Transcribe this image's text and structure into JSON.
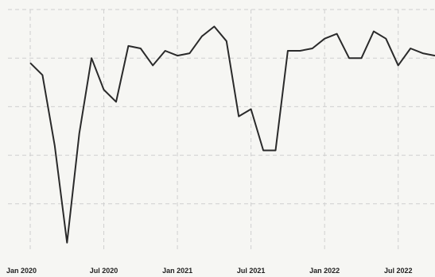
{
  "chart_data": {
    "type": "line",
    "title": "",
    "xlabel": "",
    "ylabel": "",
    "grid": true,
    "legend": "none",
    "line_color": "#2a2a2a",
    "x_ticks": [
      {
        "label": "Jan 2020",
        "date": "2020-01"
      },
      {
        "label": "Jul 2020",
        "date": "2020-07"
      },
      {
        "label": "Jan 2021",
        "date": "2021-01"
      },
      {
        "label": "Jul 2021",
        "date": "2021-07"
      },
      {
        "label": "Jan 2022",
        "date": "2022-01"
      },
      {
        "label": "Jul 2022",
        "date": "2022-07"
      }
    ],
    "ylim": [
      0,
      1
    ],
    "y_gridlines": [
      0.2,
      0.4,
      0.6,
      0.8
    ],
    "series": [
      {
        "x": [
          "2020-01",
          "2020-02",
          "2020-03",
          "2020-04",
          "2020-05",
          "2020-06",
          "2020-07",
          "2020-08",
          "2020-09",
          "2020-10",
          "2020-11",
          "2020-12",
          "2021-01",
          "2021-02",
          "2021-03",
          "2021-04",
          "2021-05",
          "2021-06",
          "2021-07",
          "2021-08",
          "2021-09",
          "2021-10",
          "2021-11",
          "2021-12",
          "2022-01",
          "2022-02",
          "2022-03",
          "2022-04",
          "2022-05",
          "2022-06",
          "2022-07",
          "2022-08",
          "2022-09",
          "2022-10"
        ],
        "values": [
          0.78,
          0.73,
          0.44,
          0.04,
          0.49,
          0.8,
          0.67,
          0.62,
          0.85,
          0.84,
          0.77,
          0.83,
          0.81,
          0.82,
          0.89,
          0.93,
          0.87,
          0.56,
          0.59,
          0.42,
          0.42,
          0.83,
          0.83,
          0.84,
          0.88,
          0.9,
          0.8,
          0.8,
          0.91,
          0.88,
          0.77,
          0.84,
          0.82,
          0.81
        ]
      }
    ]
  }
}
